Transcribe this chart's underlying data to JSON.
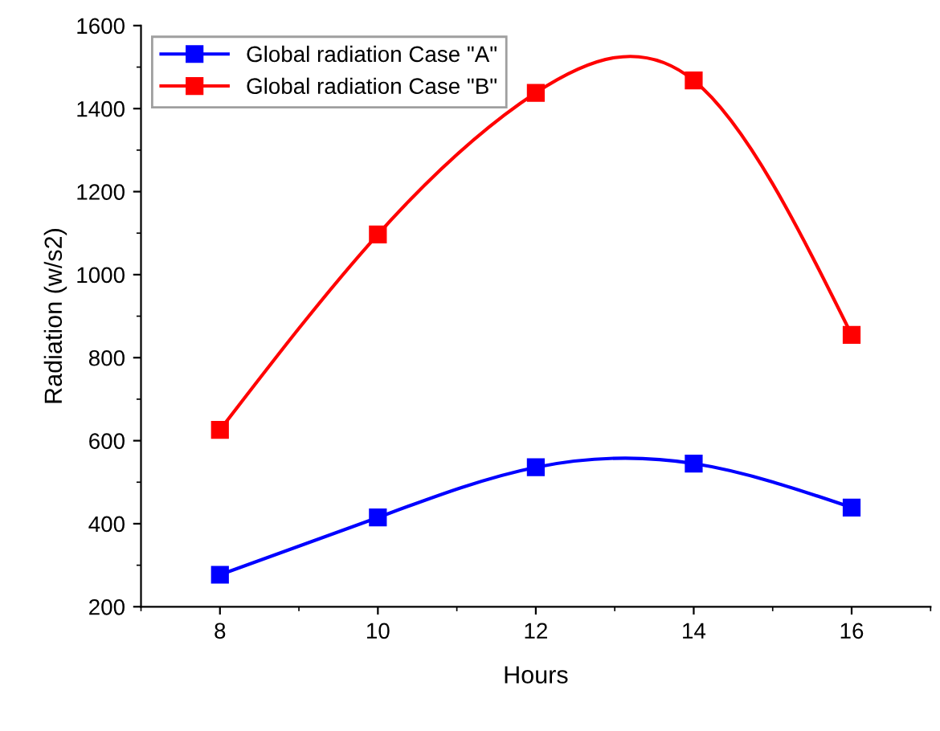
{
  "chart_data": {
    "type": "line",
    "xlabel": "Hours",
    "ylabel": "Radiation (w/s2)",
    "x": [
      8,
      10,
      12,
      14,
      16
    ],
    "series": [
      {
        "name": "Global radiation Case \"A\"",
        "color": "#0000ff",
        "values": [
          277,
          415,
          536,
          545,
          439
        ]
      },
      {
        "name": "Global radiation Case \"B\"",
        "color": "#ff0000",
        "values": [
          626,
          1097,
          1438,
          1468,
          855
        ]
      }
    ],
    "xlim": [
      7,
      17
    ],
    "xticks": [
      8,
      10,
      12,
      14,
      16
    ],
    "ylim": [
      200,
      1600
    ],
    "yticks": [
      200,
      400,
      600,
      800,
      1000,
      1200,
      1400,
      1600
    ],
    "marker": "square",
    "line_style": "solid",
    "legend": "top left",
    "grid": false
  }
}
